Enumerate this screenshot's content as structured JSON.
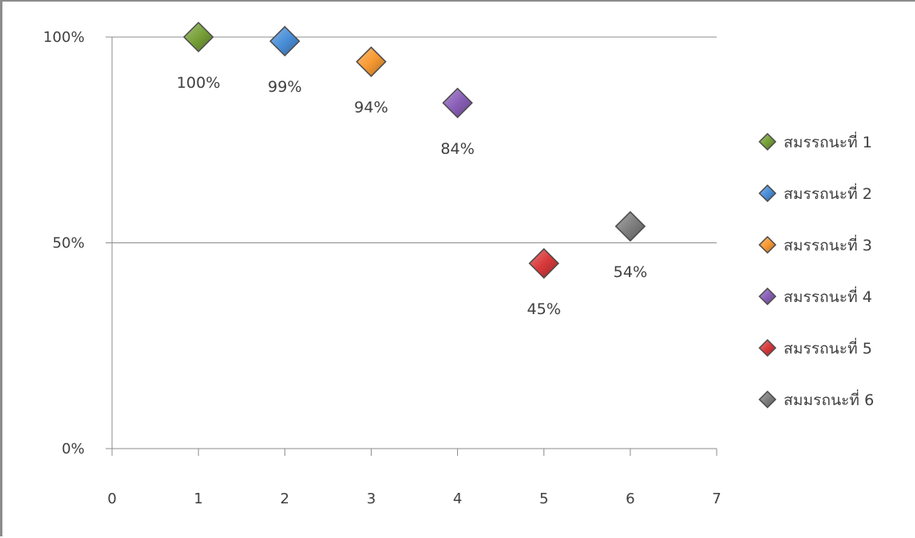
{
  "chart_data": {
    "type": "scatter",
    "title": "",
    "xlabel": "",
    "ylabel": "",
    "xlim": [
      0,
      7
    ],
    "ylim": [
      0,
      100
    ],
    "x_ticks": [
      "0",
      "1",
      "2",
      "3",
      "4",
      "5",
      "6",
      "7"
    ],
    "y_ticks": [
      "0%",
      "50%",
      "100%"
    ],
    "grid": "horizontal",
    "legend_position": "right",
    "series": [
      {
        "name": "สมรรถนะที่ 1",
        "x": 1,
        "y": 100,
        "label": "100%",
        "color": "#77a038"
      },
      {
        "name": "สมรรถนะที่ 2",
        "x": 2,
        "y": 99,
        "label": "99%",
        "color": "#4a8fd8"
      },
      {
        "name": "สมรรถนะที่ 3",
        "x": 3,
        "y": 94,
        "label": "94%",
        "color": "#f79a33"
      },
      {
        "name": "สมรรถนะที่ 4",
        "x": 4,
        "y": 84,
        "label": "84%",
        "color": "#8a5fb8"
      },
      {
        "name": "สมรรถนะที่ 5",
        "x": 5,
        "y": 45,
        "label": "45%",
        "color": "#d9393b"
      },
      {
        "name": "สมมรถนะที่ 6",
        "x": 6,
        "y": 54,
        "label": "54%",
        "color": "#7f7f7f"
      }
    ]
  }
}
